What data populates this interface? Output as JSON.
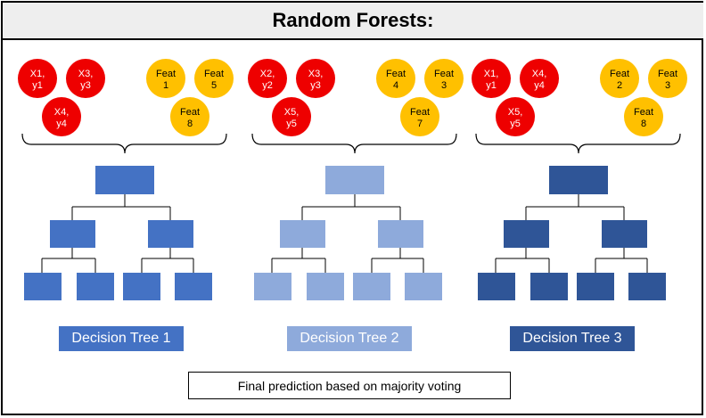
{
  "title": "Random Forests:",
  "colors": {
    "sample": "#ee0000",
    "feature": "#ffc000",
    "tree1": "#4472c4",
    "tree2": "#8eaadb",
    "tree3": "#2f5597"
  },
  "panels": [
    {
      "samples": [
        [
          "X1,",
          "y1"
        ],
        [
          "X3,",
          "y3"
        ],
        [
          "X4,",
          "y4"
        ]
      ],
      "features": [
        [
          "Feat",
          "1"
        ],
        [
          "Feat",
          "5"
        ],
        [
          "Feat",
          "8"
        ]
      ],
      "label": "Decision Tree 1"
    },
    {
      "samples": [
        [
          "X2,",
          "y2"
        ],
        [
          "X3,",
          "y3"
        ],
        [
          "X5,",
          "y5"
        ]
      ],
      "features": [
        [
          "Feat",
          "4"
        ],
        [
          "Feat",
          "3"
        ],
        [
          "Feat",
          "7"
        ]
      ],
      "label": "Decision Tree 2"
    },
    {
      "samples": [
        [
          "X1,",
          "y1"
        ],
        [
          "X4,",
          "y4"
        ],
        [
          "X5,",
          "y5"
        ]
      ],
      "features": [
        [
          "Feat",
          "2"
        ],
        [
          "Feat",
          "3"
        ],
        [
          "Feat",
          "8"
        ]
      ],
      "label": "Decision Tree 3"
    }
  ],
  "final_prediction": "Final prediction based on majority voting"
}
